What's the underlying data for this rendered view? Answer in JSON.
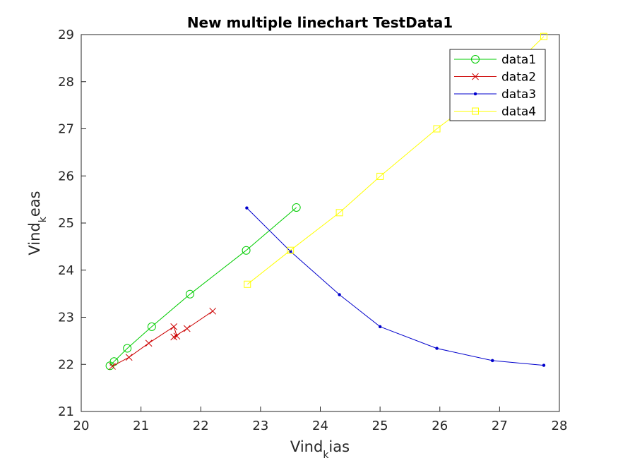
{
  "chart_data": {
    "type": "line",
    "title": "New multiple linechart TestData1",
    "xlabel": {
      "main": "Vind",
      "sub": "k",
      "tail": "ias"
    },
    "ylabel": {
      "main": "Vind",
      "sub": "k",
      "tail": "eas"
    },
    "xlim": [
      20,
      28
    ],
    "ylim": [
      21,
      29
    ],
    "xticks": [
      "20",
      "21",
      "22",
      "23",
      "24",
      "25",
      "26",
      "27",
      "28"
    ],
    "yticks": [
      "21",
      "22",
      "23",
      "24",
      "25",
      "26",
      "27",
      "28",
      "29"
    ],
    "legend_position": "top-right",
    "grid": false,
    "series": [
      {
        "name": "data1",
        "color": "#00cc00",
        "marker": "circle",
        "points": [
          [
            20.48,
            21.97
          ],
          [
            20.55,
            22.06
          ],
          [
            20.77,
            22.34
          ],
          [
            21.18,
            22.8
          ],
          [
            21.82,
            23.49
          ],
          [
            22.76,
            24.42
          ],
          [
            23.6,
            25.33
          ]
        ]
      },
      {
        "name": "data2",
        "color": "#cc0000",
        "marker": "x",
        "points": [
          [
            20.52,
            21.96
          ],
          [
            20.8,
            22.15
          ],
          [
            21.13,
            22.45
          ],
          [
            21.55,
            22.8
          ],
          [
            21.6,
            22.6
          ],
          [
            21.55,
            22.58
          ],
          [
            21.77,
            22.76
          ],
          [
            22.2,
            23.13
          ]
        ]
      },
      {
        "name": "data3",
        "color": "#0000cc",
        "marker": "dot",
        "points": [
          [
            22.77,
            25.32
          ],
          [
            23.5,
            24.4
          ],
          [
            24.32,
            23.48
          ],
          [
            25.0,
            22.8
          ],
          [
            25.95,
            22.34
          ],
          [
            26.88,
            22.08
          ],
          [
            27.74,
            21.98
          ]
        ]
      },
      {
        "name": "data4",
        "color": "#ffff00",
        "marker": "square",
        "points": [
          [
            22.78,
            23.7
          ],
          [
            23.5,
            24.42
          ],
          [
            24.32,
            25.22
          ],
          [
            25.0,
            25.99
          ],
          [
            25.95,
            27.0
          ],
          [
            26.88,
            27.89
          ],
          [
            27.74,
            28.96
          ]
        ]
      }
    ]
  }
}
